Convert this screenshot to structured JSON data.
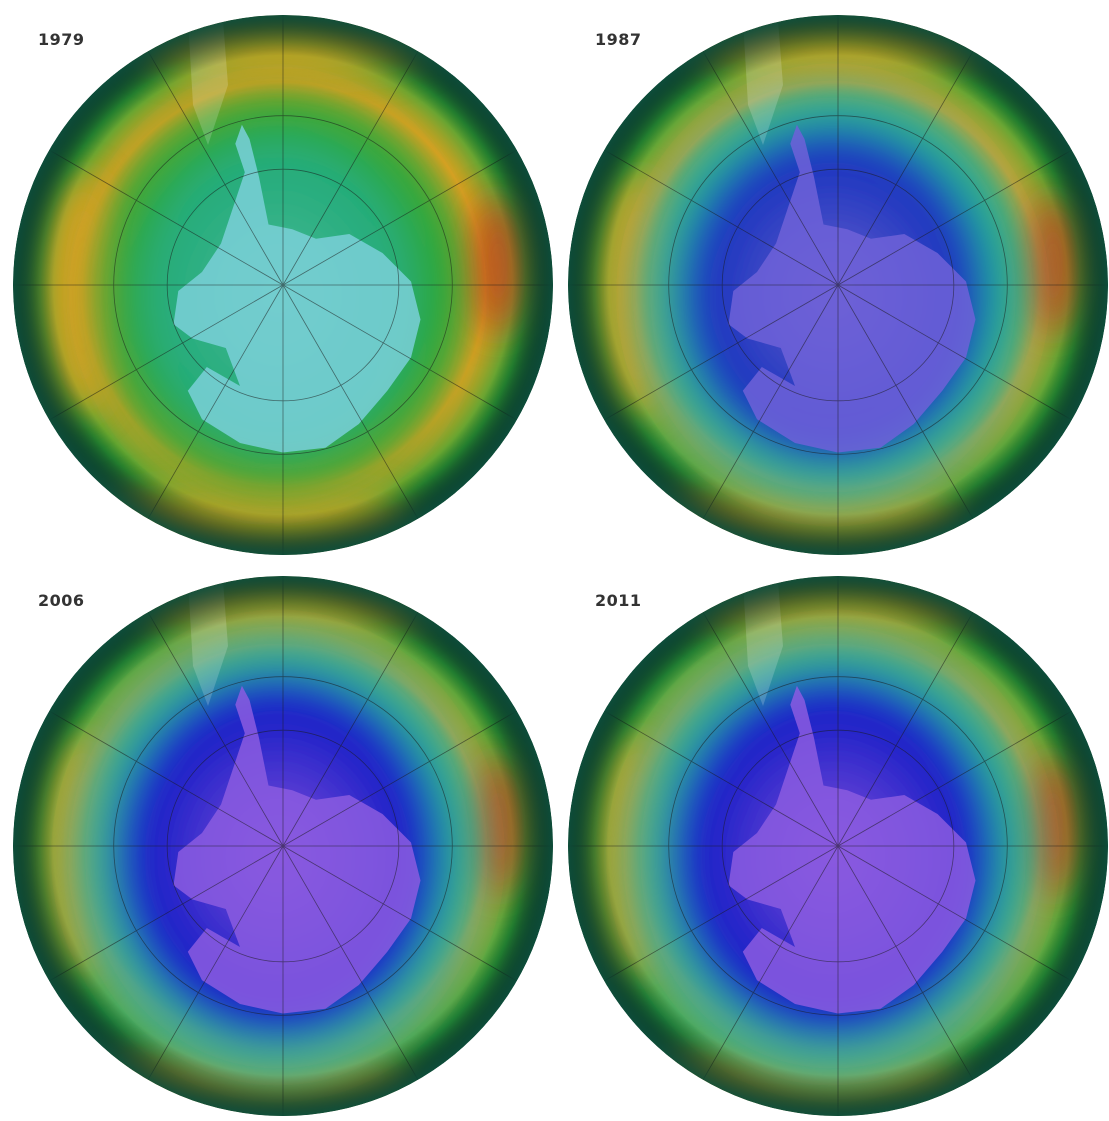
{
  "panels": [
    {
      "year": "1979",
      "hole": "weak"
    },
    {
      "year": "1987",
      "hole": "medium"
    },
    {
      "year": "2006",
      "hole": "strong"
    },
    {
      "year": "2011",
      "hole": "strong"
    }
  ],
  "colors": {
    "background": "#ffffff",
    "label": "#333333",
    "rim": "#0d4d3a",
    "ozone_high": "#c23a1c",
    "ozone_mid_high": "#e2a020",
    "ozone_mid": "#2fa83a",
    "ozone_low_mid": "#1fb0a8",
    "ozone_low": "#1c22c8",
    "ozone_lowest": "#7b52d8",
    "graticule": "#1a1a1a"
  }
}
